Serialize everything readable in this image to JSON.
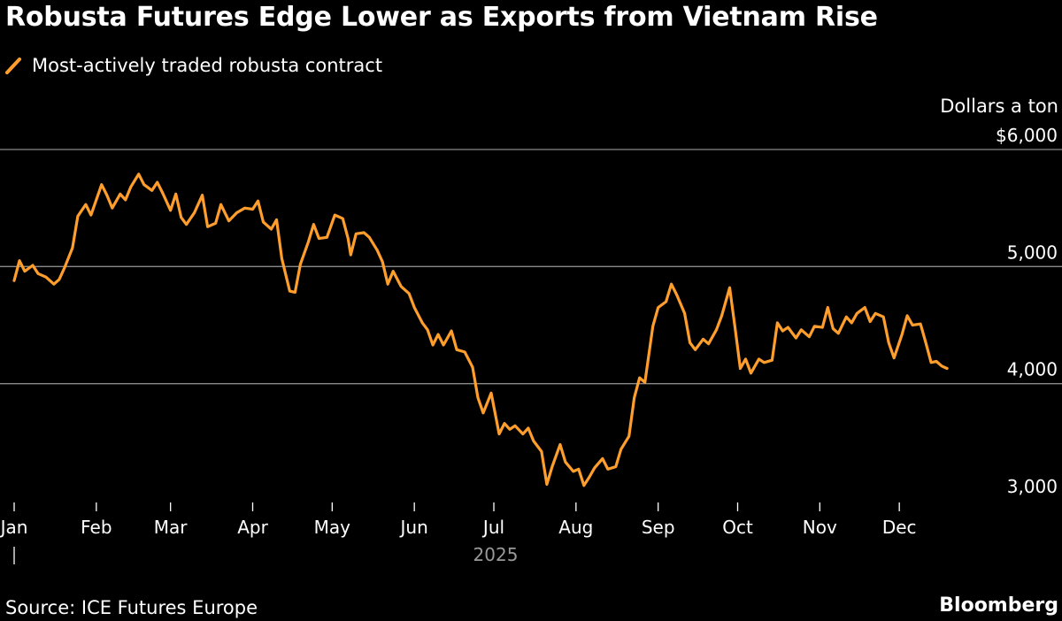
{
  "title": "Robusta Futures Edge Lower as Exports from Vietnam Rise",
  "legend": {
    "label": "Most-actively traded robusta contract",
    "color": "#ff9e2c"
  },
  "unit_label": "Dollars a ton",
  "source": "Source: ICE Futures Europe",
  "brand": "Bloomberg",
  "chart_data": {
    "type": "line",
    "title": "Robusta Futures Edge Lower as Exports from Vietnam Rise",
    "ylabel": "Dollars a ton",
    "ylim": [
      3000,
      6000
    ],
    "yticks": [
      {
        "value": 6000,
        "label": "$6,000"
      },
      {
        "value": 5000,
        "label": "5,000"
      },
      {
        "value": 4000,
        "label": "4,000"
      },
      {
        "value": 3000,
        "label": "3,000"
      }
    ],
    "xticks": [
      "Jan",
      "Feb",
      "Mar",
      "Apr",
      "May",
      "Jun",
      "Jul",
      "Aug",
      "Sep",
      "Oct",
      "Nov",
      "Dec"
    ],
    "year_label": "2025",
    "grid": true,
    "series": [
      {
        "name": "Most-actively traded robusta contract",
        "color": "#ff9e2c",
        "points": [
          [
            "2025-01-01",
            4880
          ],
          [
            "2025-01-03",
            5050
          ],
          [
            "2025-01-05",
            4960
          ],
          [
            "2025-01-08",
            5010
          ],
          [
            "2025-01-10",
            4940
          ],
          [
            "2025-01-13",
            4910
          ],
          [
            "2025-01-16",
            4850
          ],
          [
            "2025-01-18",
            4890
          ],
          [
            "2025-01-20",
            4990
          ],
          [
            "2025-01-23",
            5160
          ],
          [
            "2025-01-25",
            5430
          ],
          [
            "2025-01-28",
            5530
          ],
          [
            "2025-01-30",
            5440
          ],
          [
            "2025-02-03",
            5700
          ],
          [
            "2025-02-05",
            5610
          ],
          [
            "2025-02-07",
            5500
          ],
          [
            "2025-02-10",
            5620
          ],
          [
            "2025-02-12",
            5570
          ],
          [
            "2025-02-14",
            5680
          ],
          [
            "2025-02-17",
            5790
          ],
          [
            "2025-02-19",
            5700
          ],
          [
            "2025-02-22",
            5650
          ],
          [
            "2025-02-24",
            5720
          ],
          [
            "2025-02-26",
            5630
          ],
          [
            "2025-03-01",
            5480
          ],
          [
            "2025-03-03",
            5620
          ],
          [
            "2025-03-05",
            5420
          ],
          [
            "2025-03-07",
            5360
          ],
          [
            "2025-03-10",
            5460
          ],
          [
            "2025-03-13",
            5610
          ],
          [
            "2025-03-15",
            5340
          ],
          [
            "2025-03-18",
            5370
          ],
          [
            "2025-03-20",
            5530
          ],
          [
            "2025-03-23",
            5390
          ],
          [
            "2025-03-26",
            5460
          ],
          [
            "2025-03-29",
            5500
          ],
          [
            "2025-04-01",
            5490
          ],
          [
            "2025-04-03",
            5560
          ],
          [
            "2025-04-05",
            5380
          ],
          [
            "2025-04-08",
            5320
          ],
          [
            "2025-04-10",
            5400
          ],
          [
            "2025-04-12",
            5070
          ],
          [
            "2025-04-15",
            4790
          ],
          [
            "2025-04-17",
            4780
          ],
          [
            "2025-04-19",
            5020
          ],
          [
            "2025-04-22",
            5210
          ],
          [
            "2025-04-24",
            5360
          ],
          [
            "2025-04-26",
            5240
          ],
          [
            "2025-04-29",
            5250
          ],
          [
            "2025-05-02",
            5440
          ],
          [
            "2025-05-05",
            5410
          ],
          [
            "2025-05-07",
            5240
          ],
          [
            "2025-05-08",
            5100
          ],
          [
            "2025-05-10",
            5280
          ],
          [
            "2025-05-13",
            5290
          ],
          [
            "2025-05-15",
            5250
          ],
          [
            "2025-05-18",
            5140
          ],
          [
            "2025-05-20",
            5040
          ],
          [
            "2025-05-22",
            4850
          ],
          [
            "2025-05-24",
            4960
          ],
          [
            "2025-05-27",
            4830
          ],
          [
            "2025-05-30",
            4770
          ],
          [
            "2025-06-01",
            4650
          ],
          [
            "2025-06-04",
            4520
          ],
          [
            "2025-06-06",
            4460
          ],
          [
            "2025-06-08",
            4330
          ],
          [
            "2025-06-10",
            4420
          ],
          [
            "2025-06-12",
            4330
          ],
          [
            "2025-06-15",
            4450
          ],
          [
            "2025-06-17",
            4290
          ],
          [
            "2025-06-20",
            4270
          ],
          [
            "2025-06-23",
            4140
          ],
          [
            "2025-06-25",
            3880
          ],
          [
            "2025-06-27",
            3750
          ],
          [
            "2025-06-30",
            3920
          ],
          [
            "2025-07-03",
            3570
          ],
          [
            "2025-07-05",
            3660
          ],
          [
            "2025-07-07",
            3610
          ],
          [
            "2025-07-09",
            3640
          ],
          [
            "2025-07-12",
            3570
          ],
          [
            "2025-07-14",
            3620
          ],
          [
            "2025-07-16",
            3510
          ],
          [
            "2025-07-19",
            3420
          ],
          [
            "2025-07-21",
            3140
          ],
          [
            "2025-07-23",
            3290
          ],
          [
            "2025-07-26",
            3480
          ],
          [
            "2025-07-28",
            3330
          ],
          [
            "2025-07-31",
            3250
          ],
          [
            "2025-08-02",
            3270
          ],
          [
            "2025-08-04",
            3130
          ],
          [
            "2025-08-06",
            3200
          ],
          [
            "2025-08-08",
            3280
          ],
          [
            "2025-08-11",
            3360
          ],
          [
            "2025-08-13",
            3270
          ],
          [
            "2025-08-16",
            3290
          ],
          [
            "2025-08-18",
            3440
          ],
          [
            "2025-08-21",
            3550
          ],
          [
            "2025-08-23",
            3880
          ],
          [
            "2025-08-25",
            4050
          ],
          [
            "2025-08-27",
            4010
          ],
          [
            "2025-08-30",
            4490
          ],
          [
            "2025-09-01",
            4650
          ],
          [
            "2025-09-04",
            4700
          ],
          [
            "2025-09-06",
            4850
          ],
          [
            "2025-09-08",
            4760
          ],
          [
            "2025-09-11",
            4600
          ],
          [
            "2025-09-13",
            4350
          ],
          [
            "2025-09-15",
            4290
          ],
          [
            "2025-09-18",
            4380
          ],
          [
            "2025-09-20",
            4340
          ],
          [
            "2025-09-23",
            4460
          ],
          [
            "2025-09-25",
            4580
          ],
          [
            "2025-09-28",
            4820
          ],
          [
            "2025-09-30",
            4480
          ],
          [
            "2025-10-02",
            4130
          ],
          [
            "2025-10-04",
            4210
          ],
          [
            "2025-10-06",
            4090
          ],
          [
            "2025-10-09",
            4210
          ],
          [
            "2025-10-11",
            4180
          ],
          [
            "2025-10-14",
            4200
          ],
          [
            "2025-10-16",
            4520
          ],
          [
            "2025-10-18",
            4450
          ],
          [
            "2025-10-20",
            4480
          ],
          [
            "2025-10-23",
            4390
          ],
          [
            "2025-10-25",
            4460
          ],
          [
            "2025-10-28",
            4400
          ],
          [
            "2025-10-30",
            4490
          ],
          [
            "2025-11-02",
            4480
          ],
          [
            "2025-11-04",
            4650
          ],
          [
            "2025-11-06",
            4470
          ],
          [
            "2025-11-08",
            4430
          ],
          [
            "2025-11-11",
            4570
          ],
          [
            "2025-11-13",
            4520
          ],
          [
            "2025-11-15",
            4600
          ],
          [
            "2025-11-18",
            4650
          ],
          [
            "2025-11-20",
            4530
          ],
          [
            "2025-11-22",
            4600
          ],
          [
            "2025-11-25",
            4570
          ],
          [
            "2025-11-27",
            4350
          ],
          [
            "2025-11-29",
            4220
          ],
          [
            "2025-12-02",
            4420
          ],
          [
            "2025-12-04",
            4580
          ],
          [
            "2025-12-06",
            4500
          ],
          [
            "2025-12-09",
            4510
          ],
          [
            "2025-12-11",
            4350
          ],
          [
            "2025-12-13",
            4180
          ],
          [
            "2025-12-15",
            4190
          ],
          [
            "2025-12-17",
            4150
          ],
          [
            "2025-12-19",
            4130
          ]
        ]
      }
    ]
  }
}
